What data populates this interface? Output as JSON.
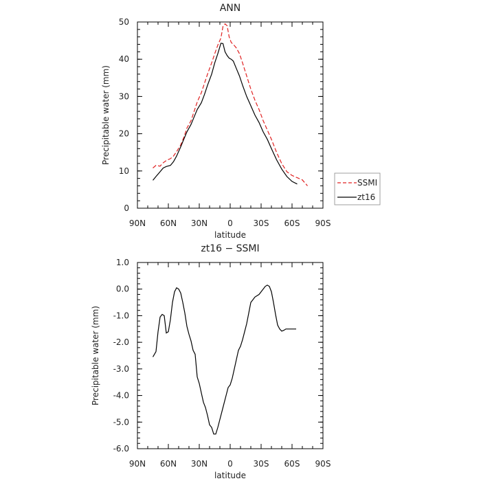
{
  "chart_data": [
    {
      "type": "line",
      "title": "ANN",
      "xlabel": "latitude",
      "ylabel": "Precipitable water (mm)",
      "xlim": [
        90,
        -90
      ],
      "ylim": [
        0,
        50
      ],
      "x_ticks": [
        90,
        60,
        30,
        0,
        -30,
        -60,
        -90
      ],
      "x_tick_labels": [
        "90N",
        "60N",
        "30N",
        "0",
        "30S",
        "60S",
        "90S"
      ],
      "y_ticks": [
        0,
        10,
        20,
        30,
        40,
        50
      ],
      "y_tick_labels": [
        "0",
        "10",
        "20",
        "30",
        "40",
        "50"
      ],
      "legend": {
        "placement": "right",
        "entries": [
          "SSMI",
          "zt16"
        ]
      },
      "series": [
        {
          "name": "SSMI",
          "color": "#e02020",
          "dash": true,
          "x": [
            75,
            72,
            68,
            65,
            62,
            58,
            55,
            52,
            48,
            45,
            42,
            38,
            35,
            32,
            28,
            25,
            22,
            18,
            15,
            12,
            9,
            7,
            5,
            3,
            1,
            -1,
            -3,
            -6,
            -9,
            -12,
            -16,
            -20,
            -24,
            -28,
            -32,
            -36,
            -40,
            -45,
            -50,
            -55,
            -60,
            -65,
            -70,
            -75
          ],
          "y": [
            10.8,
            11.5,
            11.3,
            12.2,
            12.8,
            13.3,
            14.0,
            15.2,
            17.0,
            19.0,
            21.5,
            23.5,
            26.0,
            28.5,
            31.0,
            33.5,
            36.0,
            39.0,
            41.5,
            43.8,
            45.7,
            48.8,
            49.5,
            49.0,
            46.0,
            44.5,
            44.0,
            43.0,
            41.5,
            39.0,
            35.5,
            32.0,
            29.0,
            26.5,
            23.5,
            21.0,
            18.5,
            15.0,
            12.0,
            9.8,
            8.8,
            8.2,
            7.6,
            6.0
          ]
        },
        {
          "name": "zt16",
          "color": "#000000",
          "dash": false,
          "x": [
            75,
            72,
            68,
            65,
            62,
            58,
            55,
            52,
            48,
            45,
            42,
            38,
            35,
            32,
            28,
            25,
            22,
            18,
            15,
            12,
            9,
            7,
            5,
            3,
            1,
            -1,
            -3,
            -6,
            -9,
            -12,
            -16,
            -20,
            -24,
            -28,
            -32,
            -36,
            -40,
            -45,
            -50,
            -55,
            -60,
            -65
          ],
          "y": [
            7.5,
            8.5,
            9.8,
            10.8,
            11.2,
            11.5,
            12.5,
            14.0,
            16.5,
            18.5,
            20.5,
            22.5,
            24.5,
            26.5,
            28.3,
            30.5,
            33.0,
            36.0,
            39.0,
            41.5,
            44.3,
            44.2,
            42.0,
            41.0,
            40.3,
            40.0,
            39.5,
            37.5,
            35.5,
            33.0,
            30.0,
            27.5,
            25.0,
            23.0,
            20.5,
            18.5,
            16.0,
            13.0,
            10.5,
            8.5,
            7.2,
            6.5
          ]
        }
      ]
    },
    {
      "type": "line",
      "title": "zt16 − SSMI",
      "xlabel": "latitude",
      "ylabel": "Precipitable water (mm)",
      "xlim": [
        90,
        -90
      ],
      "ylim": [
        -6,
        1
      ],
      "x_ticks": [
        90,
        60,
        30,
        0,
        -30,
        -60,
        -90
      ],
      "x_tick_labels": [
        "90N",
        "60N",
        "30N",
        "0",
        "30S",
        "60S",
        "90S"
      ],
      "y_ticks": [
        1,
        0,
        -1,
        -2,
        -3,
        -4,
        -5,
        -6
      ],
      "y_tick_labels": [
        "1.0",
        "0.0",
        "-1.0",
        "-2.0",
        "-3.0",
        "-4.0",
        "-5.0",
        "-6.0"
      ],
      "series": [
        {
          "color": "#000000",
          "dash": false,
          "x": [
            75,
            72,
            70,
            68,
            66,
            64,
            62,
            60,
            58,
            56,
            54,
            52,
            50,
            48,
            46,
            44,
            42,
            40,
            38,
            36,
            34,
            32,
            30,
            28,
            26,
            24,
            22,
            20,
            18,
            16,
            14,
            12,
            10,
            8,
            6,
            4,
            2,
            0,
            -2,
            -4,
            -6,
            -8,
            -10,
            -12,
            -14,
            -16,
            -18,
            -20,
            -22,
            -24,
            -26,
            -28,
            -30,
            -32,
            -34,
            -36,
            -38,
            -40,
            -42,
            -44,
            -46,
            -48,
            -50,
            -52,
            -54,
            -56,
            -58,
            -60,
            -62,
            -64
          ],
          "y": [
            -2.55,
            -2.35,
            -1.6,
            -1.05,
            -0.95,
            -1.0,
            -1.65,
            -1.6,
            -1.15,
            -0.5,
            -0.1,
            0.05,
            0.0,
            -0.15,
            -0.5,
            -0.9,
            -1.4,
            -1.7,
            -1.95,
            -2.3,
            -2.45,
            -3.3,
            -3.55,
            -3.9,
            -4.25,
            -4.45,
            -4.75,
            -5.1,
            -5.2,
            -5.45,
            -5.45,
            -5.2,
            -4.9,
            -4.6,
            -4.3,
            -4.0,
            -3.7,
            -3.6,
            -3.35,
            -3.0,
            -2.65,
            -2.3,
            -2.15,
            -1.9,
            -1.6,
            -1.3,
            -0.9,
            -0.5,
            -0.4,
            -0.3,
            -0.25,
            -0.2,
            -0.1,
            0.0,
            0.1,
            0.15,
            0.1,
            -0.1,
            -0.5,
            -0.95,
            -1.35,
            -1.5,
            -1.58,
            -1.55,
            -1.5,
            -1.5,
            -1.5,
            -1.5,
            -1.5,
            -1.5
          ]
        }
      ]
    }
  ]
}
